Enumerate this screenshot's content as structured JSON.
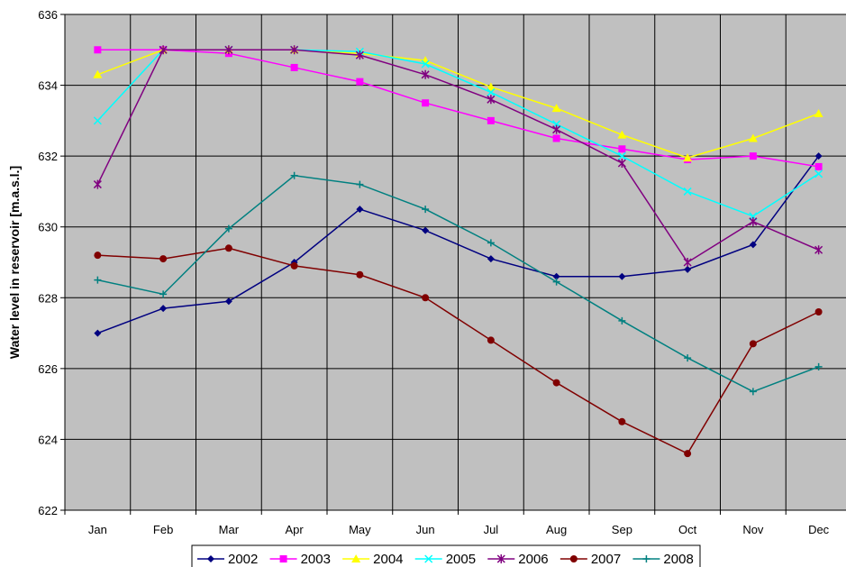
{
  "chart_data": {
    "type": "line",
    "title": "",
    "xlabel": "",
    "ylabel": "Water level in reservoir [m.a.s.l.]",
    "ylim": [
      622,
      636
    ],
    "y_ticks": [
      "622",
      "624",
      "626",
      "628",
      "630",
      "632",
      "634",
      "636"
    ],
    "grid": true,
    "legend_position": "bottom",
    "plot_background": "#c0c0c0",
    "categories": [
      "Jan",
      "Feb",
      "Mar",
      "Apr",
      "May",
      "Jun",
      "Jul",
      "Aug",
      "Sep",
      "Oct",
      "Nov",
      "Dec"
    ],
    "series": [
      {
        "name": "2002",
        "color": "#000080",
        "marker": "diamond",
        "values": [
          627.0,
          627.7,
          627.9,
          629.0,
          630.5,
          629.9,
          629.1,
          628.6,
          628.6,
          628.8,
          629.5,
          632.0
        ]
      },
      {
        "name": "2003",
        "color": "#ff00ff",
        "marker": "square",
        "values": [
          635.0,
          635.0,
          634.9,
          634.5,
          634.1,
          633.5,
          633.0,
          632.5,
          632.2,
          631.9,
          632.0,
          631.7
        ]
      },
      {
        "name": "2004",
        "color": "#ffff00",
        "marker": "triangle",
        "values": [
          634.3,
          635.0,
          635.0,
          635.0,
          634.9,
          634.7,
          633.95,
          633.35,
          632.6,
          631.95,
          632.5,
          633.2
        ]
      },
      {
        "name": "2005",
        "color": "#00ffff",
        "marker": "x",
        "values": [
          633.0,
          635.0,
          635.0,
          635.0,
          634.95,
          634.6,
          633.8,
          632.9,
          632.0,
          631.0,
          630.3,
          631.5
        ]
      },
      {
        "name": "2006",
        "color": "#800080",
        "marker": "star",
        "values": [
          631.2,
          635.0,
          635.0,
          635.0,
          634.85,
          634.3,
          633.6,
          632.75,
          631.8,
          629.0,
          630.15,
          629.35
        ]
      },
      {
        "name": "2007",
        "color": "#800000",
        "marker": "circle",
        "values": [
          629.2,
          629.1,
          629.4,
          628.9,
          628.65,
          628.0,
          626.8,
          625.6,
          624.5,
          623.6,
          626.7,
          627.6
        ]
      },
      {
        "name": "2008",
        "color": "#008080",
        "marker": "plus",
        "values": [
          628.5,
          628.1,
          629.95,
          631.45,
          631.2,
          630.5,
          629.55,
          628.45,
          627.35,
          626.3,
          625.35,
          626.05
        ]
      }
    ]
  }
}
